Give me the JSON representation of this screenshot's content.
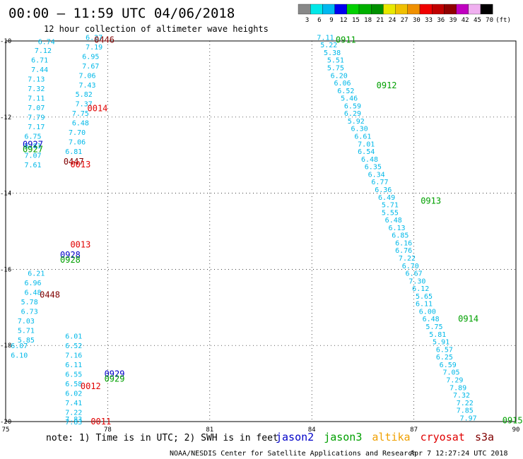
{
  "header": {
    "title": "00:00 – 11:59 UTC 04/06/2018",
    "subtitle": "12 hour collection of altimeter wave heights"
  },
  "legend_scale": {
    "labels": [
      "3",
      "6",
      "9",
      "12",
      "15",
      "18",
      "21",
      "24",
      "27",
      "30",
      "33",
      "36",
      "39",
      "42",
      "45",
      "70"
    ],
    "unit": "(ft)",
    "colors": [
      "#888888",
      "#00e8e8",
      "#00b8f0",
      "#0000f0",
      "#00d000",
      "#00b000",
      "#009000",
      "#e8e800",
      "#f0c000",
      "#f09000",
      "#f00000",
      "#c00000",
      "#900000",
      "#c000c0",
      "#f0b0f0",
      "#000000"
    ]
  },
  "footer": {
    "note": "note:  1) Time is in UTC;  2) SWH is in feet",
    "credit": "NOAA/NESDIS Center for Satellite Applications and Research",
    "timestamp": "Apr  7 12:27:24 UTC 2018",
    "satellites": [
      {
        "name": "jason2",
        "color": "#0000c8"
      },
      {
        "name": "jason3",
        "color": "#00a000"
      },
      {
        "name": "altika",
        "color": "#f0a000"
      },
      {
        "name": "cryosat",
        "color": "#e00000"
      },
      {
        "name": "s3a",
        "color": "#800000"
      }
    ]
  },
  "chart_data": {
    "type": "scatter",
    "xlim": [
      75,
      90
    ],
    "ylim": [
      -20,
      -10
    ],
    "x_ticks": [
      75,
      78,
      81,
      84,
      87,
      90
    ],
    "y_ticks": [
      -10,
      -12,
      -14,
      -16,
      -18,
      -20
    ],
    "x_tick_labels": [
      "75",
      "78",
      "81",
      "84",
      "87",
      "90"
    ],
    "y_tick_labels": [
      "-10",
      "-12",
      "-14",
      "-16",
      "-18",
      "-20"
    ],
    "grid": true,
    "value_color": "#00b8e8",
    "tracks": [
      {
        "x": [
          76.2,
          76.1,
          76.0,
          76.0,
          75.9,
          75.9,
          75.9,
          75.9,
          75.9,
          75.9,
          75.8,
          75.8,
          75.8,
          75.8
        ],
        "y": [
          -10.08,
          -10.32,
          -10.57,
          -10.82,
          -11.07,
          -11.32,
          -11.57,
          -11.82,
          -12.07,
          -12.32,
          -12.57,
          -12.82,
          -13.07,
          -13.32
        ],
        "values": [
          "6.74",
          "7.12",
          "6.71",
          "7.44",
          "7.13",
          "7.32",
          "7.11",
          "7.07",
          "7.79",
          "7.17",
          "6.75",
          "6.81",
          "7.07",
          "7.61"
        ]
      },
      {
        "x": [
          77.6,
          77.6,
          77.5,
          77.5,
          77.4,
          77.4,
          77.3,
          77.3,
          77.2,
          77.2,
          77.1,
          77.1,
          77.0
        ],
        "y": [
          -9.97,
          -10.22,
          -10.47,
          -10.72,
          -10.97,
          -11.22,
          -11.47,
          -11.72,
          -11.97,
          -12.22,
          -12.47,
          -12.72,
          -12.97
        ],
        "values": [
          "6.27",
          "7.19",
          "6.95",
          "7.67",
          "7.06",
          "7.43",
          "5.82",
          "7.37",
          "7.75",
          "6.48",
          "7.70",
          "7.06",
          "6.81"
        ]
      },
      {
        "x": [
          75.9,
          75.8,
          75.8,
          75.7,
          75.7,
          75.6,
          75.6,
          75.6
        ],
        "y": [
          -16.17,
          -16.42,
          -16.67,
          -16.92,
          -17.17,
          -17.42,
          -17.67,
          -17.92
        ],
        "values": [
          "6.21",
          "6.96",
          "6.48",
          "5.78",
          "6.73",
          "7.03",
          "5.71",
          "5.85"
        ]
      },
      {
        "x": [
          75.4,
          75.4
        ],
        "y": [
          -18.07,
          -18.32
        ],
        "values": [
          "6.07",
          "6.10"
        ]
      },
      {
        "x": [
          77.0,
          77.0,
          77.0,
          77.0,
          77.0,
          77.0,
          77.0,
          77.0,
          77.0,
          77.0,
          77.0
        ],
        "y": [
          -17.82,
          -18.07,
          -18.32,
          -18.57,
          -18.82,
          -19.07,
          -19.32,
          -19.57,
          -19.82,
          -20.07,
          -20.0
        ],
        "values": [
          "6.01",
          "6.52",
          "7.16",
          "6.11",
          "6.55",
          "6.58",
          "6.02",
          "7.41",
          "7.22",
          "7.83",
          "7.83"
        ]
      },
      {
        "x": [
          84.4,
          84.5,
          84.6,
          84.7,
          84.7,
          84.8,
          84.9,
          85.0,
          85.1,
          85.2,
          85.2,
          85.3,
          85.4,
          85.5,
          85.6,
          85.6,
          85.7,
          85.8,
          85.9,
          86.0,
          86.1,
          86.2,
          86.3,
          86.3,
          86.4,
          86.5,
          86.6,
          86.7,
          86.7,
          86.8,
          86.9,
          87.0,
          87.1,
          87.2,
          87.3,
          87.3,
          87.4,
          87.5,
          87.6,
          87.7,
          87.8,
          87.9,
          87.9,
          88.0,
          88.1,
          88.2,
          88.3,
          88.4,
          88.5,
          88.5,
          88.6,
          88.7,
          88.8,
          88.9,
          89.0,
          89.1,
          89.2,
          89.2,
          89.3,
          89.4
        ],
        "y": [
          -9.97,
          -10.17,
          -10.37,
          -10.57,
          -10.77,
          -10.97,
          -11.17,
          -11.37,
          -11.57,
          -11.77,
          -11.97,
          -12.17,
          -12.37,
          -12.57,
          -12.77,
          -12.97,
          -13.17,
          -13.37,
          -13.57,
          -13.77,
          -13.97,
          -14.17,
          -14.37,
          -14.57,
          -14.77,
          -14.97,
          -15.17,
          -15.37,
          -15.57,
          -15.77,
          -15.97,
          -16.17,
          -16.37,
          -16.57,
          -16.77,
          -16.97,
          -17.17,
          -17.37,
          -17.57,
          -17.77,
          -17.97,
          -18.17,
          -18.37,
          -18.57,
          -18.77,
          -18.97,
          -19.17,
          -19.37,
          -19.57,
          -19.77,
          -19.97,
          -20.0,
          -20.0,
          -20.0,
          -20.0,
          -20.0,
          -20.0,
          -20.0,
          -20.0,
          -20.0
        ],
        "values": [
          "7.11",
          "5.22",
          "5.38",
          "5.51",
          "5.75",
          "6.20",
          "6.06",
          "6.52",
          "5.46",
          "6.59",
          "6.29",
          "5.92",
          "6.30",
          "6.61",
          "7.01",
          "6.54",
          "6.48",
          "6.35",
          "6.34",
          "6.77",
          "6.36",
          "6.49",
          "5.71",
          "5.55",
          "6.48",
          "6.13",
          "6.85",
          "6.16",
          "6.76",
          "7.22",
          "6.70",
          "6.67",
          "7.30",
          "6.12",
          "5.65",
          "6.11",
          "6.00",
          "6.48",
          "5.75",
          "5.81",
          "5.91",
          "6.57",
          "6.25",
          "6.59",
          "7.05",
          "7.29",
          "7.89",
          "7.32",
          "7.22",
          "7.85",
          "7.97",
          "",
          "",
          "",
          "",
          "",
          "",
          "",
          "",
          ""
        ]
      }
    ],
    "dense_tracks_note": "",
    "time_labels": [
      {
        "text": "0446",
        "x": 77.9,
        "y": -9.97,
        "color": "#800000"
      },
      {
        "text": "0014",
        "x": 77.7,
        "y": -11.77,
        "color": "#e00000"
      },
      {
        "text": "0927",
        "x": 75.8,
        "y": -12.72,
        "color": "#0000c8"
      },
      {
        "text": "0927",
        "x": 75.8,
        "y": -12.85,
        "color": "#00a000"
      },
      {
        "text": "0447",
        "x": 77.0,
        "y": -13.17,
        "color": "#800000"
      },
      {
        "text": "0013",
        "x": 77.2,
        "y": -13.25,
        "color": "#e00000"
      },
      {
        "text": "0013",
        "x": 77.2,
        "y": -15.35,
        "color": "#e00000"
      },
      {
        "text": "0928",
        "x": 76.9,
        "y": -15.62,
        "color": "#0000c8"
      },
      {
        "text": "0928",
        "x": 76.9,
        "y": -15.75,
        "color": "#00a000"
      },
      {
        "text": "0448",
        "x": 76.3,
        "y": -16.67,
        "color": "#800000"
      },
      {
        "text": "0929",
        "x": 78.2,
        "y": -18.75,
        "color": "#0000c8"
      },
      {
        "text": "0929",
        "x": 78.2,
        "y": -18.88,
        "color": "#00a000"
      },
      {
        "text": "0012",
        "x": 77.5,
        "y": -19.07,
        "color": "#e00000"
      },
      {
        "text": "0011",
        "x": 77.8,
        "y": -20.0,
        "color": "#e00000"
      },
      {
        "text": "0911",
        "x": 85.0,
        "y": -9.97,
        "color": "#00a000"
      },
      {
        "text": "0912",
        "x": 86.2,
        "y": -11.17,
        "color": "#00a000"
      },
      {
        "text": "0913",
        "x": 87.5,
        "y": -14.2,
        "color": "#00a000"
      },
      {
        "text": "0914",
        "x": 88.6,
        "y": -17.3,
        "color": "#00a000"
      },
      {
        "text": "0915",
        "x": 89.9,
        "y": -19.97,
        "color": "#00a000"
      }
    ]
  }
}
